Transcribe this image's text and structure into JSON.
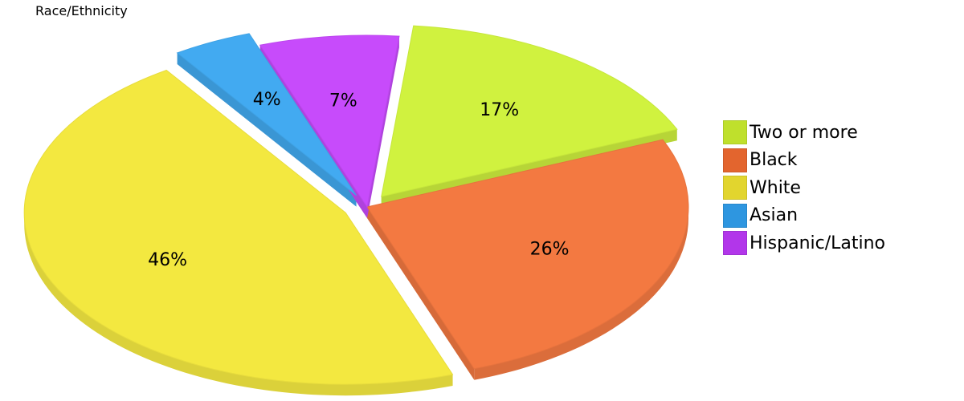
{
  "chart_data": {
    "type": "pie",
    "title": "Race/Ethnicity",
    "slices": [
      {
        "label": "Two or more",
        "value": 17,
        "display": "17%",
        "color": "#d0f23f",
        "legend_color": "#bfe02c"
      },
      {
        "label": "Black",
        "value": 26,
        "display": "26%",
        "color": "#f37941",
        "legend_color": "#e3652e"
      },
      {
        "label": "White",
        "value": 46,
        "display": "46%",
        "color": "#f3e840",
        "legend_color": "#e2d52e"
      },
      {
        "label": "Asian",
        "value": 4,
        "display": "4%",
        "color": "#42aaf1",
        "legend_color": "#2e96e0"
      },
      {
        "label": "Hispanic/Latino",
        "value": 7,
        "display": "7%",
        "color": "#c74bfb",
        "legend_color": "#b236ea"
      }
    ],
    "legend_position": "right",
    "style": "3d-exploded"
  }
}
